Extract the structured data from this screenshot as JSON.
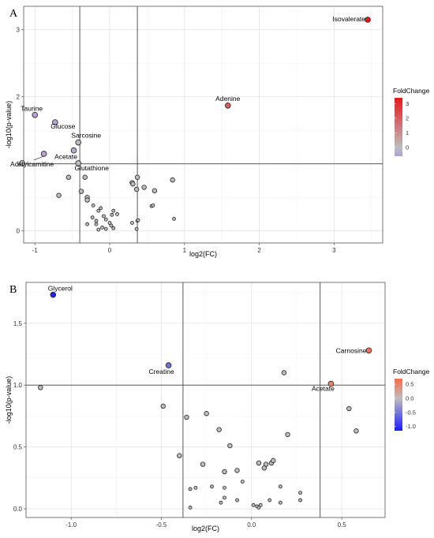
{
  "chart_data": [
    {
      "type": "scatter",
      "panel_label": "A",
      "title": "",
      "xlabel": "log2(FC)",
      "ylabel": "-log10(p-value)",
      "xlim": [
        -1.15,
        3.65
      ],
      "ylim": [
        -0.18,
        3.35
      ],
      "xticks": [
        -1,
        0,
        1,
        2,
        3
      ],
      "yticks": [
        0,
        1,
        2,
        3
      ],
      "grid": true,
      "vlines": [
        -0.4,
        0.37
      ],
      "hlines": [
        1.0
      ],
      "legend": {
        "title": "FoldChange",
        "placement": "right",
        "ticks": [
          3,
          2,
          1,
          0
        ],
        "range": [
          -0.6,
          3.4
        ],
        "color_low": "#b39ddb",
        "color_mid": "#bdbdbd",
        "color_high": "#e41a1c"
      },
      "points": [
        {
          "x": 3.45,
          "y": 3.15,
          "fc": 3.4,
          "label": "Isovalerate"
        },
        {
          "x": 1.58,
          "y": 1.87,
          "fc": 2.0,
          "label": "Adenine"
        },
        {
          "x": -1.0,
          "y": 1.73,
          "fc": -0.5,
          "label": "Taurine"
        },
        {
          "x": -0.73,
          "y": 1.62,
          "fc": -0.45,
          "label": "Glucose"
        },
        {
          "x": -0.42,
          "y": 1.32,
          "fc": -0.1,
          "label": "Sarcosine"
        },
        {
          "x": -0.48,
          "y": 1.2,
          "fc": -0.4,
          "label": "Acetate"
        },
        {
          "x": -0.88,
          "y": 1.15,
          "fc": -0.5,
          "label": "Acetylcarnitine"
        },
        {
          "x": -1.17,
          "y": 1.01,
          "fc": -0.05,
          "label": ""
        },
        {
          "x": -0.42,
          "y": 1.01,
          "fc": -0.05,
          "label": "Glutathione"
        },
        {
          "x": -0.55,
          "y": 0.8,
          "fc": 0,
          "label": ""
        },
        {
          "x": -0.33,
          "y": 0.8,
          "fc": 0,
          "label": ""
        },
        {
          "x": -0.68,
          "y": 0.53,
          "fc": 0,
          "label": ""
        },
        {
          "x": -0.38,
          "y": 0.59,
          "fc": 0,
          "label": ""
        },
        {
          "x": -0.3,
          "y": 0.5,
          "fc": 0,
          "label": ""
        },
        {
          "x": -0.3,
          "y": 0.46,
          "fc": 0,
          "label": ""
        },
        {
          "x": -0.22,
          "y": 0.38,
          "fc": 0,
          "label": ""
        },
        {
          "x": -0.15,
          "y": 0.3,
          "fc": 0,
          "label": ""
        },
        {
          "x": -0.12,
          "y": 0.34,
          "fc": 0,
          "label": ""
        },
        {
          "x": -0.23,
          "y": 0.2,
          "fc": 0,
          "label": ""
        },
        {
          "x": -0.18,
          "y": 0.15,
          "fc": 0,
          "label": ""
        },
        {
          "x": -0.08,
          "y": 0.22,
          "fc": 0,
          "label": ""
        },
        {
          "x": -0.05,
          "y": 0.17,
          "fc": 0,
          "label": ""
        },
        {
          "x": 0.05,
          "y": 0.3,
          "fc": 0,
          "label": ""
        },
        {
          "x": 0.1,
          "y": 0.25,
          "fc": 0,
          "label": ""
        },
        {
          "x": 0.03,
          "y": 0.24,
          "fc": 0,
          "label": ""
        },
        {
          "x": -0.3,
          "y": 0.1,
          "fc": 0,
          "label": ""
        },
        {
          "x": -0.18,
          "y": 0.1,
          "fc": 0,
          "label": ""
        },
        {
          "x": -0.1,
          "y": 0.05,
          "fc": 0,
          "label": ""
        },
        {
          "x": -0.15,
          "y": 0.02,
          "fc": 0,
          "label": ""
        },
        {
          "x": -0.05,
          "y": 0.03,
          "fc": 0,
          "label": ""
        },
        {
          "x": 0.02,
          "y": 0.08,
          "fc": 0,
          "label": ""
        },
        {
          "x": 0.05,
          "y": 0.04,
          "fc": 0,
          "label": ""
        },
        {
          "x": 0.0,
          "y": 0.12,
          "fc": 0,
          "label": ""
        },
        {
          "x": 0.3,
          "y": 0.72,
          "fc": 0,
          "label": ""
        },
        {
          "x": 0.31,
          "y": 0.7,
          "fc": 0,
          "label": ""
        },
        {
          "x": 0.37,
          "y": 0.8,
          "fc": 0,
          "label": ""
        },
        {
          "x": 0.36,
          "y": 0.62,
          "fc": 0,
          "label": ""
        },
        {
          "x": 0.46,
          "y": 0.65,
          "fc": 0,
          "label": ""
        },
        {
          "x": 0.6,
          "y": 0.6,
          "fc": 0,
          "label": ""
        },
        {
          "x": 0.84,
          "y": 0.76,
          "fc": 0,
          "label": ""
        },
        {
          "x": 0.56,
          "y": 0.37,
          "fc": 0,
          "label": ""
        },
        {
          "x": 0.58,
          "y": 0.38,
          "fc": 0,
          "label": ""
        },
        {
          "x": 0.3,
          "y": 0.12,
          "fc": 0,
          "label": ""
        },
        {
          "x": 0.37,
          "y": 0.15,
          "fc": 0,
          "label": ""
        },
        {
          "x": 0.38,
          "y": 0.16,
          "fc": 0,
          "label": ""
        },
        {
          "x": 0.36,
          "y": 0.03,
          "fc": 0,
          "label": ""
        },
        {
          "x": 0.86,
          "y": 0.18,
          "fc": 0,
          "label": ""
        }
      ]
    },
    {
      "type": "scatter",
      "panel_label": "B",
      "title": "",
      "xlabel": "log2(FC)",
      "ylabel": "-log10(p-value)",
      "xlim": [
        -1.25,
        0.74
      ],
      "ylim": [
        -0.07,
        1.83
      ],
      "xticks": [
        -1.0,
        -0.5,
        0.0,
        0.5
      ],
      "yticks": [
        0.0,
        0.5,
        1.0,
        1.5
      ],
      "grid": true,
      "vlines": [
        -0.38,
        0.38
      ],
      "hlines": [
        1.0
      ],
      "legend": {
        "title": "FoldChange",
        "placement": "right",
        "ticks": [
          0.5,
          0.0,
          -0.5,
          -1.0
        ],
        "range": [
          -1.15,
          0.7
        ],
        "color_low": "#1a1aff",
        "color_mid": "#bdbdbd",
        "color_high": "#fb6a4a"
      },
      "points": [
        {
          "x": -1.1,
          "y": 1.73,
          "fc": -1.1,
          "label": "Glycerol"
        },
        {
          "x": -0.46,
          "y": 1.16,
          "fc": -0.55,
          "label": "Creatine"
        },
        {
          "x": 0.65,
          "y": 1.28,
          "fc": 0.62,
          "label": "Carnosine"
        },
        {
          "x": 0.44,
          "y": 1.01,
          "fc": 0.5,
          "label": "Acetate"
        },
        {
          "x": -1.17,
          "y": 0.98,
          "fc": 0,
          "label": ""
        },
        {
          "x": 0.18,
          "y": 1.1,
          "fc": 0,
          "label": ""
        },
        {
          "x": -0.49,
          "y": 0.83,
          "fc": 0,
          "label": ""
        },
        {
          "x": -0.36,
          "y": 0.74,
          "fc": 0,
          "label": ""
        },
        {
          "x": -0.25,
          "y": 0.77,
          "fc": 0,
          "label": ""
        },
        {
          "x": -0.18,
          "y": 0.64,
          "fc": 0,
          "label": ""
        },
        {
          "x": -0.12,
          "y": 0.51,
          "fc": 0,
          "label": ""
        },
        {
          "x": -0.4,
          "y": 0.43,
          "fc": 0,
          "label": ""
        },
        {
          "x": 0.2,
          "y": 0.6,
          "fc": 0,
          "label": ""
        },
        {
          "x": 0.54,
          "y": 0.81,
          "fc": 0,
          "label": ""
        },
        {
          "x": 0.58,
          "y": 0.63,
          "fc": 0,
          "label": ""
        },
        {
          "x": -0.27,
          "y": 0.36,
          "fc": 0,
          "label": ""
        },
        {
          "x": -0.15,
          "y": 0.3,
          "fc": 0,
          "label": ""
        },
        {
          "x": -0.08,
          "y": 0.31,
          "fc": 0,
          "label": ""
        },
        {
          "x": 0.04,
          "y": 0.37,
          "fc": 0,
          "label": ""
        },
        {
          "x": 0.08,
          "y": 0.36,
          "fc": 0,
          "label": ""
        },
        {
          "x": 0.07,
          "y": 0.33,
          "fc": 0,
          "label": ""
        },
        {
          "x": 0.11,
          "y": 0.37,
          "fc": 0,
          "label": ""
        },
        {
          "x": 0.12,
          "y": 0.39,
          "fc": 0,
          "label": ""
        },
        {
          "x": -0.05,
          "y": 0.22,
          "fc": 0,
          "label": ""
        },
        {
          "x": -0.34,
          "y": 0.16,
          "fc": 0,
          "label": ""
        },
        {
          "x": -0.31,
          "y": 0.17,
          "fc": 0,
          "label": ""
        },
        {
          "x": -0.22,
          "y": 0.18,
          "fc": 0,
          "label": ""
        },
        {
          "x": -0.15,
          "y": 0.17,
          "fc": 0,
          "label": ""
        },
        {
          "x": -0.15,
          "y": 0.09,
          "fc": 0,
          "label": ""
        },
        {
          "x": -0.17,
          "y": 0.05,
          "fc": 0,
          "label": ""
        },
        {
          "x": -0.08,
          "y": 0.07,
          "fc": 0,
          "label": ""
        },
        {
          "x": -0.34,
          "y": 0.01,
          "fc": 0,
          "label": ""
        },
        {
          "x": 0.01,
          "y": 0.03,
          "fc": 0,
          "label": ""
        },
        {
          "x": 0.03,
          "y": 0.02,
          "fc": 0,
          "label": ""
        },
        {
          "x": 0.04,
          "y": 0.01,
          "fc": 0,
          "label": ""
        },
        {
          "x": 0.05,
          "y": 0.03,
          "fc": 0,
          "label": ""
        },
        {
          "x": 0.1,
          "y": 0.07,
          "fc": 0,
          "label": ""
        },
        {
          "x": 0.16,
          "y": 0.18,
          "fc": 0,
          "label": ""
        },
        {
          "x": 0.16,
          "y": 0.05,
          "fc": 0,
          "label": ""
        },
        {
          "x": 0.27,
          "y": 0.13,
          "fc": 0,
          "label": ""
        },
        {
          "x": 0.27,
          "y": 0.07,
          "fc": 0,
          "label": ""
        }
      ]
    }
  ]
}
